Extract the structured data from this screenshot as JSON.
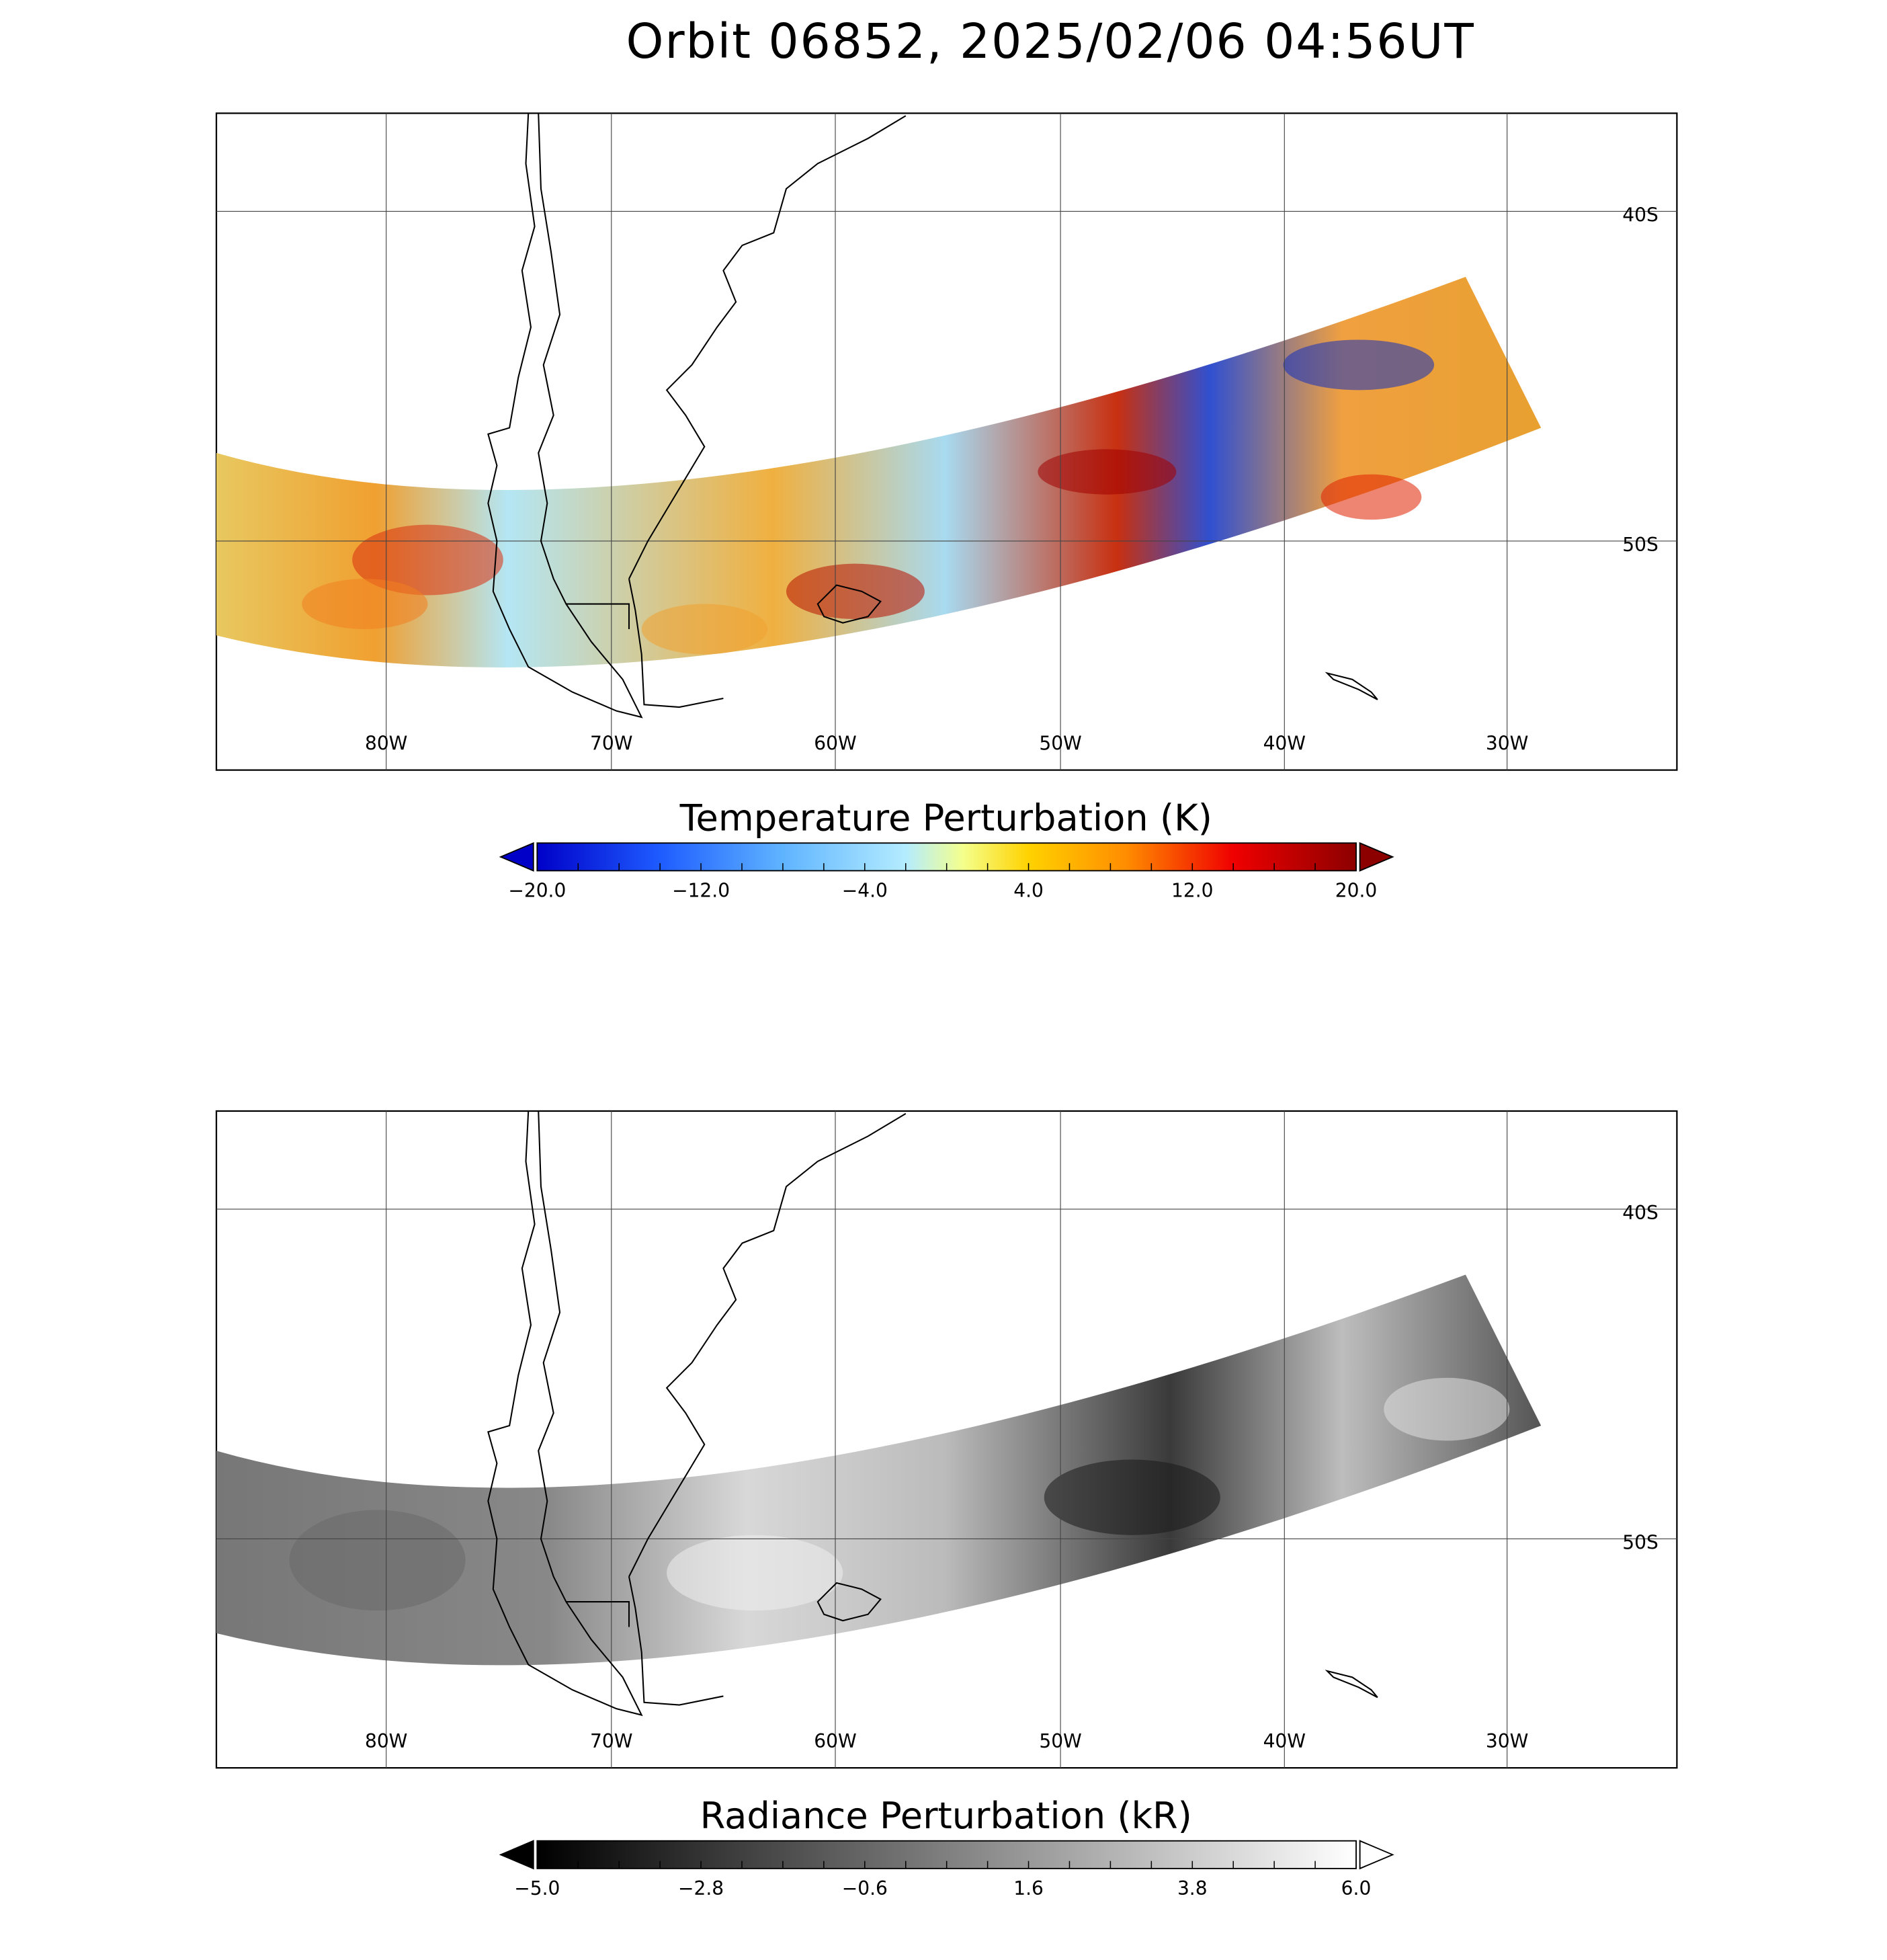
{
  "title": "Orbit 06852, 2025/02/06 04:56UT",
  "panels": [
    {
      "lon_labels": [
        "80W",
        "70W",
        "60W",
        "50W",
        "40W",
        "30W"
      ],
      "lat_labels": [
        "40S",
        "50S"
      ],
      "colorbar": {
        "title": "Temperature Perturbation (K)",
        "tick_labels": [
          "−20.0",
          "−12.0",
          "−4.0",
          "4.0",
          "12.0",
          "20.0"
        ]
      }
    },
    {
      "lon_labels": [
        "80W",
        "70W",
        "60W",
        "50W",
        "40W",
        "30W"
      ],
      "lat_labels": [
        "40S",
        "50S"
      ],
      "colorbar": {
        "title": "Radiance Perturbation (kR)",
        "tick_labels": [
          "−5.0",
          "−2.8",
          "−0.6",
          "1.6",
          "3.8",
          "6.0"
        ]
      }
    }
  ]
}
